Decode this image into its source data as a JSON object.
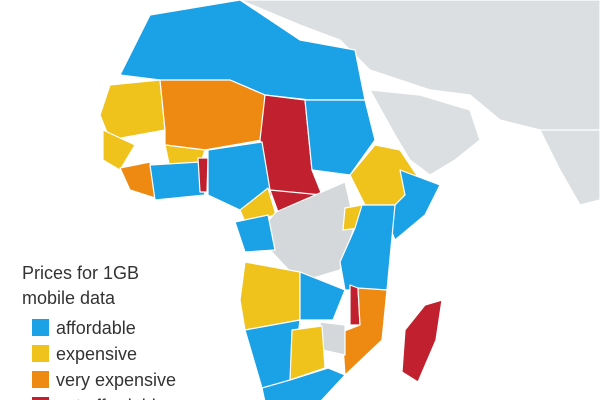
{
  "legend": {
    "title": [
      "Prices for 1GB",
      "mobile data"
    ],
    "items": [
      {
        "label": "affordable",
        "color": "#1ba1e6"
      },
      {
        "label": "expensive",
        "color": "#efc21c"
      },
      {
        "label": "very expensive",
        "color": "#ee8911"
      },
      {
        "label": "not affordable",
        "color": "#c1212e"
      }
    ]
  }
}
